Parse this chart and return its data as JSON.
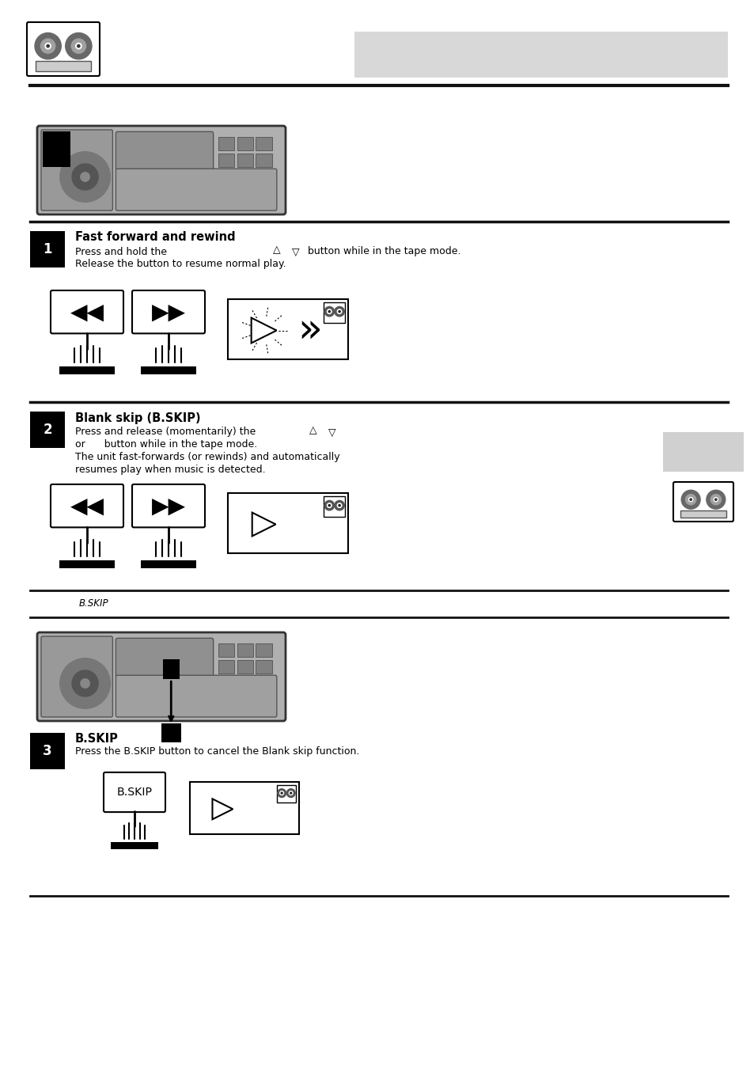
{
  "bg_color": "#ffffff",
  "divider_color": "#111111",
  "label_bg": "#000000",
  "label_fg": "#ffffff",
  "gray_header_color": "#d8d8d8",
  "sidebar_gray_color": "#d0d0d0",
  "device_body": "#b0b0b0",
  "device_inner": "#999999",
  "device_panel": "#888888",
  "section1_title": "Fast forward and rewind",
  "section1_line1": "Press and hold the",
  "section1_line1b": "or      button while in the tape mode.",
  "section1_line2": "Release the button to resume normal play.",
  "section2_title": "Blank skip (B.SKIP)",
  "section2_line1": "Press and release (momentarily) the",
  "section2_line1b": "or      button while in the tape mode.",
  "section2_line2": "The unit fast-forwards (or rewinds) and automatically",
  "section2_line3": "resumes play when music is detected.",
  "section3_title": "B.SKIP",
  "section3_line1": "Press the B.SKIP button to cancel the Blank skip function.",
  "bskip_mid_label": "B.SKIP"
}
